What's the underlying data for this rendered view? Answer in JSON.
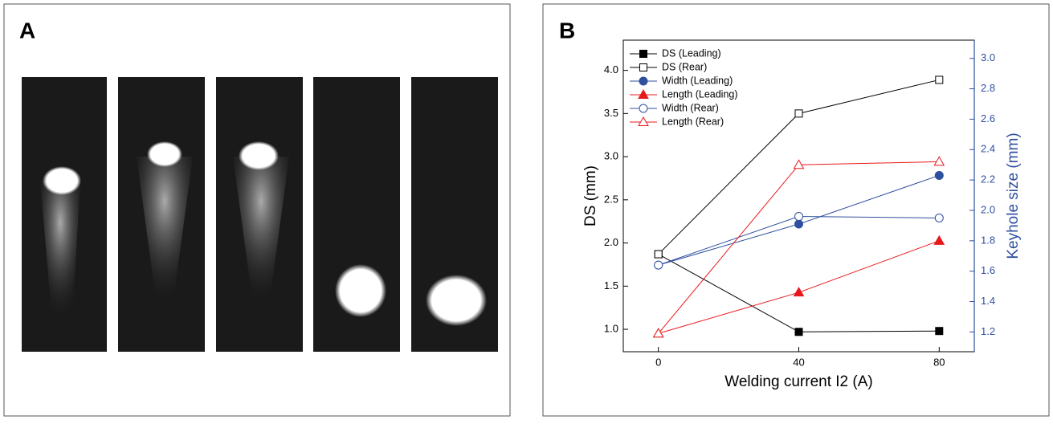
{
  "panel_a": {
    "label": "A"
  },
  "panel_b": {
    "label": "B"
  },
  "chart_data": {
    "type": "line",
    "x": [
      0,
      40,
      80
    ],
    "xlabel": "Welding current I2 (A)",
    "ylabel": "DS (mm)",
    "y2label": "Keyhole size (mm)",
    "xlim": [
      -10,
      90
    ],
    "xticks": [
      0,
      40,
      80
    ],
    "ylim": [
      0.74,
      4.35
    ],
    "yticks": [
      {
        "value": 1,
        "label": "1.0"
      },
      1.5,
      {
        "value": 2,
        "label": "2.0"
      },
      2.5,
      {
        "value": 3,
        "label": "3.0"
      },
      3.5,
      {
        "value": 4,
        "label": "4.0"
      }
    ],
    "y2lim": [
      1.07,
      3.12
    ],
    "y2ticks": [
      1.2,
      1.4,
      1.6,
      1.8,
      {
        "value": 2,
        "label": "2.0"
      },
      2.2,
      2.4,
      2.6,
      2.8,
      {
        "value": 3,
        "label": "3.0"
      }
    ],
    "y2color": "#2f4f9f",
    "legend": "upper left",
    "series": [
      {
        "name": "DS (Leading)",
        "color": "#000000",
        "marker": "square",
        "filled": true,
        "values": [
          1.87,
          0.97,
          0.98
        ]
      },
      {
        "name": "DS (Rear)",
        "color": "#000000",
        "marker": "square",
        "filled": false,
        "values": [
          1.87,
          3.5,
          3.89
        ]
      },
      {
        "name": "Width (Leading)",
        "color": "#2f4f9f",
        "marker": "circle",
        "filled": true,
        "axis": "y2",
        "values": [
          1.64,
          1.91,
          2.23
        ]
      },
      {
        "name": "Length (Leading)",
        "color": "#e8191c",
        "marker": "triangle",
        "filled": true,
        "axis": "y2",
        "values": [
          1.19,
          1.46,
          1.8
        ]
      },
      {
        "name": "Width (Rear)",
        "color": "#2f4f9f",
        "marker": "circle",
        "filled": false,
        "axis": "y2",
        "values": [
          1.64,
          1.96,
          1.95
        ]
      },
      {
        "name": "Length (Rear)",
        "color": "#e8191c",
        "marker": "triangle",
        "filled": false,
        "axis": "y2",
        "values": [
          1.19,
          2.3,
          2.32
        ]
      }
    ]
  }
}
